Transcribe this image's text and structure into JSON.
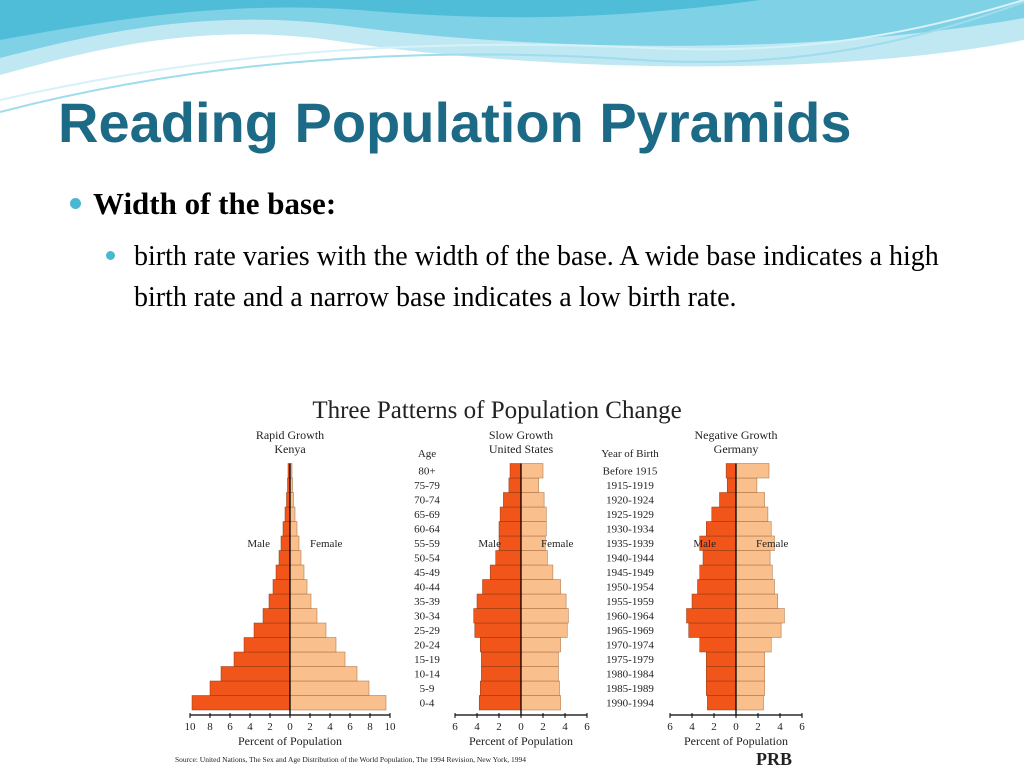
{
  "slide": {
    "title": "Reading Population Pyramids",
    "bullet_1": "Width of the base:",
    "bullet_2": "birth rate varies with the width of the base.  A wide base indicates a high birth rate and a narrow base indicates a low birth rate.",
    "colors": {
      "title": "#1c6a86",
      "bullet": "#4ab8d4",
      "wave": "#5fc4dd"
    }
  },
  "chart_data": {
    "type": "bar",
    "title": "Three Patterns of Population Change",
    "age_label": "Age",
    "birth_label": "Year of Birth",
    "age_groups": [
      "0-4",
      "5-9",
      "10-14",
      "15-19",
      "20-24",
      "25-29",
      "30-34",
      "35-39",
      "40-44",
      "45-49",
      "50-54",
      "55-59",
      "60-64",
      "65-69",
      "70-74",
      "75-79",
      "80+"
    ],
    "birth_years": [
      "1990-1994",
      "1985-1989",
      "1980-1984",
      "1975-1979",
      "1970-1974",
      "1965-1969",
      "1960-1964",
      "1955-1959",
      "1950-1954",
      "1945-1949",
      "1940-1944",
      "1935-1939",
      "1930-1934",
      "1925-1929",
      "1920-1924",
      "1915-1919",
      "Before 1915"
    ],
    "colors": {
      "male": "#f2551a",
      "female": "#f9c08e"
    },
    "source": "Source: United Nations, The Sex and Age Distribution of the World Population, The 1994 Revision, New York, 1994",
    "logo": "PRB",
    "charts": [
      {
        "title": "Rapid Growth",
        "subtitle": "Kenya",
        "xlabel": "Percent of Population",
        "male_label": "Male",
        "female_label": "Female",
        "xlim": 10,
        "ticks": [
          10,
          8,
          6,
          4,
          2,
          0,
          2,
          4,
          6,
          8,
          10
        ],
        "male": [
          9.8,
          8.0,
          6.9,
          5.6,
          4.6,
          3.6,
          2.7,
          2.1,
          1.7,
          1.4,
          1.1,
          0.9,
          0.7,
          0.5,
          0.35,
          0.25,
          0.2
        ],
        "female": [
          9.6,
          7.9,
          6.7,
          5.5,
          4.6,
          3.6,
          2.7,
          2.1,
          1.7,
          1.4,
          1.1,
          0.9,
          0.7,
          0.5,
          0.35,
          0.25,
          0.2
        ]
      },
      {
        "title": "Slow Growth",
        "subtitle": "United States",
        "xlabel": "Percent of Population",
        "male_label": "Male",
        "female_label": "Female",
        "xlim": 6,
        "ticks": [
          6,
          4,
          2,
          0,
          2,
          4,
          6
        ],
        "male": [
          3.8,
          3.7,
          3.6,
          3.6,
          3.7,
          4.2,
          4.3,
          4.0,
          3.5,
          2.8,
          2.3,
          2.0,
          2.0,
          1.9,
          1.6,
          1.1,
          1.0
        ],
        "female": [
          3.6,
          3.5,
          3.4,
          3.4,
          3.6,
          4.2,
          4.3,
          4.1,
          3.6,
          2.9,
          2.4,
          2.2,
          2.3,
          2.3,
          2.1,
          1.6,
          2.0
        ]
      },
      {
        "title": "Negative Growth",
        "subtitle": "Germany",
        "xlabel": "Percent of Population",
        "male_label": "Male",
        "female_label": "Female",
        "xlim": 6,
        "ticks": [
          6,
          4,
          2,
          0,
          2,
          4,
          6
        ],
        "male": [
          2.6,
          2.7,
          2.7,
          2.7,
          3.3,
          4.3,
          4.5,
          4.0,
          3.5,
          3.3,
          3.0,
          3.3,
          2.7,
          2.2,
          1.5,
          0.8,
          0.9
        ],
        "female": [
          2.5,
          2.6,
          2.6,
          2.6,
          3.2,
          4.1,
          4.4,
          3.8,
          3.5,
          3.3,
          3.1,
          3.5,
          3.2,
          2.9,
          2.6,
          1.9,
          3.0
        ]
      }
    ]
  }
}
